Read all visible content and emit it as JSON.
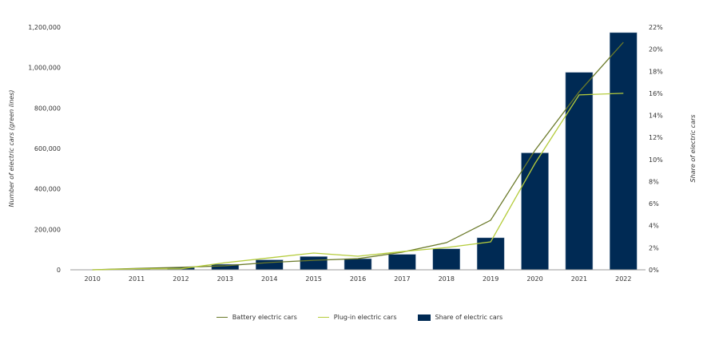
{
  "chart_data": {
    "type": "bar+line",
    "categories": [
      "2010",
      "2011",
      "2012",
      "2013",
      "2014",
      "2015",
      "2016",
      "2017",
      "2018",
      "2019",
      "2020",
      "2021",
      "2022"
    ],
    "series": [
      {
        "name": "Battery electric cars",
        "type": "line",
        "axis": "left",
        "color": "#6b7a2a",
        "values": [
          0,
          7000,
          12000,
          20000,
          36000,
          47000,
          55000,
          87000,
          134000,
          245000,
          590000,
          880000,
          1125000
        ]
      },
      {
        "name": "Plug-in electric cars",
        "type": "line",
        "axis": "left",
        "color": "#b5cc3c",
        "values": [
          0,
          5000,
          5000,
          35000,
          59000,
          83000,
          67000,
          90000,
          110000,
          138000,
          525000,
          865000,
          873000
        ]
      },
      {
        "name": "Share of electric cars",
        "type": "bar",
        "axis": "right",
        "color": "#002a54",
        "values": [
          0,
          0.1,
          0.2,
          0.5,
          0.9,
          1.2,
          1.0,
          1.4,
          1.9,
          2.9,
          10.6,
          17.9,
          21.5
        ]
      }
    ],
    "ylabel": "Number of electric cars (green lines)",
    "y2label": "Share of electric cars",
    "ylim": [
      0,
      1200000
    ],
    "y2lim": [
      0,
      22
    ],
    "yticks": [
      "0",
      "200,000",
      "400,000",
      "600,000",
      "800,000",
      "1,000,000",
      "1,200,000"
    ],
    "y2ticks": [
      "0%",
      "2%",
      "4%",
      "6%",
      "8%",
      "10%",
      "12%",
      "14%",
      "16%",
      "18%",
      "20%",
      "22%"
    ],
    "grid": false,
    "legend": "bottom"
  }
}
